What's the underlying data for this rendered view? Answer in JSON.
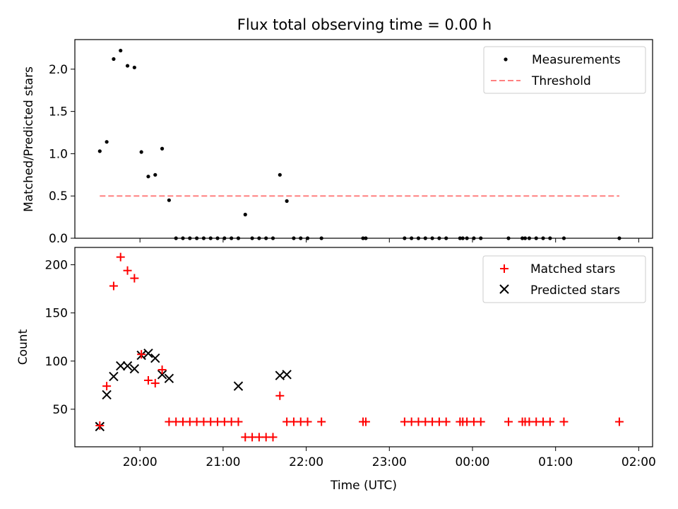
{
  "figure": {
    "title": "Flux total observing time = 0.00 h"
  },
  "chart_data": [
    {
      "type": "scatter",
      "panel": "top",
      "ylabel": "Matched/Predicted stars",
      "xlabel": "",
      "xlim": [
        "19:13",
        "02:10"
      ],
      "ylim": [
        0,
        2.35
      ],
      "yticks": [
        0.0,
        0.5,
        1.0,
        1.5,
        2.0
      ],
      "ytick_labels": [
        "0.0",
        "0.5",
        "1.0",
        "1.5",
        "2.0"
      ],
      "legend_position": "top-right",
      "series": [
        {
          "name": "Measurements",
          "style": "dot",
          "color": "#000000",
          "x": [
            "19:31",
            "19:36",
            "19:41",
            "19:46",
            "19:51",
            "19:56",
            "20:01",
            "20:06",
            "20:11",
            "20:16",
            "20:21",
            "20:26",
            "20:31",
            "20:36",
            "20:41",
            "20:46",
            "20:51",
            "20:56",
            "21:01",
            "21:06",
            "21:11",
            "21:16",
            "21:21",
            "21:26",
            "21:31",
            "21:36",
            "21:41",
            "21:46",
            "21:51",
            "21:56",
            "22:01",
            "22:11",
            "22:41",
            "22:43",
            "23:11",
            "23:16",
            "23:21",
            "23:26",
            "23:31",
            "23:36",
            "23:41",
            "23:51",
            "23:53",
            "23:56",
            "00:01",
            "00:06",
            "00:26",
            "00:36",
            "00:38",
            "00:41",
            "00:46",
            "00:51",
            "00:56",
            "01:06",
            "01:46"
          ],
          "y": [
            1.03,
            1.14,
            2.12,
            2.22,
            2.04,
            2.02,
            1.02,
            0.73,
            0.75,
            1.06,
            0.45,
            0,
            0,
            0,
            0,
            0,
            0,
            0,
            0,
            0,
            0,
            0.28,
            0,
            0,
            0,
            0,
            0.75,
            0.44,
            0,
            0,
            0,
            0,
            0,
            0,
            0,
            0,
            0,
            0,
            0,
            0,
            0,
            0,
            0,
            0,
            0,
            0,
            0,
            0,
            0,
            0,
            0,
            0,
            0,
            0,
            0
          ]
        },
        {
          "name": "Threshold",
          "style": "dashed",
          "color": "#ff8080",
          "x": [
            "19:31",
            "01:46"
          ],
          "y": [
            0.5,
            0.5
          ]
        }
      ]
    },
    {
      "type": "scatter",
      "panel": "bottom",
      "xlabel": "Time (UTC)",
      "ylabel": "Count",
      "xlim": [
        "19:13",
        "02:10"
      ],
      "ylim": [
        11,
        218
      ],
      "xticks": [
        "20:00",
        "21:00",
        "22:00",
        "23:00",
        "00:00",
        "01:00",
        "02:00"
      ],
      "yticks": [
        50,
        100,
        150,
        200
      ],
      "ytick_labels": [
        "50",
        "100",
        "150",
        "200"
      ],
      "legend_position": "top-right",
      "series": [
        {
          "name": "Matched stars",
          "marker": "+",
          "color": "#ff0000",
          "x": [
            "19:31",
            "19:36",
            "19:41",
            "19:46",
            "19:51",
            "19:56",
            "20:01",
            "20:06",
            "20:11",
            "20:16",
            "20:21",
            "20:26",
            "20:31",
            "20:36",
            "20:41",
            "20:46",
            "20:51",
            "20:56",
            "21:01",
            "21:06",
            "21:11",
            "21:16",
            "21:21",
            "21:26",
            "21:31",
            "21:36",
            "21:41",
            "21:46",
            "21:51",
            "21:56",
            "22:01",
            "22:11",
            "22:41",
            "22:43",
            "23:11",
            "23:16",
            "23:21",
            "23:26",
            "23:31",
            "23:36",
            "23:41",
            "23:51",
            "23:53",
            "23:56",
            "00:01",
            "00:06",
            "00:26",
            "00:36",
            "00:38",
            "00:41",
            "00:46",
            "00:51",
            "00:56",
            "01:06",
            "01:46"
          ],
          "y": [
            33,
            74,
            178,
            208,
            194,
            186,
            107,
            80,
            77,
            91,
            37,
            37,
            37,
            37,
            37,
            37,
            37,
            37,
            37,
            37,
            37,
            21,
            21,
            21,
            21,
            21,
            64,
            37,
            37,
            37,
            37,
            37,
            37,
            37,
            37,
            37,
            37,
            37,
            37,
            37,
            37,
            37,
            37,
            37,
            37,
            37,
            37,
            37,
            37,
            37,
            37,
            37,
            37,
            37,
            37
          ]
        },
        {
          "name": "Predicted stars",
          "marker": "x",
          "color": "#000000",
          "x": [
            "19:31",
            "19:36",
            "19:41",
            "19:46",
            "19:51",
            "19:56",
            "20:01",
            "20:06",
            "20:11",
            "20:16",
            "20:21",
            "21:11",
            "21:41",
            "21:46"
          ],
          "y": [
            32,
            65,
            84,
            95,
            95,
            92,
            106,
            108,
            103,
            86,
            82,
            74,
            85,
            86
          ]
        }
      ]
    }
  ]
}
